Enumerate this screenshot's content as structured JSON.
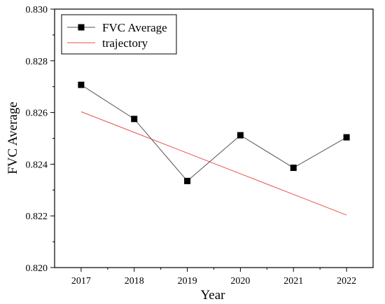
{
  "chart_data": {
    "type": "line",
    "xlabel": "Year",
    "ylabel": "FVC Average",
    "x": [
      2017,
      2018,
      2019,
      2020,
      2021,
      2022
    ],
    "xlim": [
      2016.5,
      2022.5
    ],
    "ylim": [
      0.82,
      0.83
    ],
    "yticks": [
      "0.820",
      "0.822",
      "0.824",
      "0.826",
      "0.828",
      "0.830"
    ],
    "grid": false,
    "legend_position": "top-left",
    "series": [
      {
        "name": "FVC Average",
        "values": [
          0.82707,
          0.82575,
          0.82335,
          0.82512,
          0.82386,
          0.82504
        ],
        "color": "#000000",
        "line_color": "#555555",
        "marker": "square"
      },
      {
        "name": "trajectory",
        "values": [
          0.82603,
          0.82523,
          0.82443,
          0.82363,
          0.82283,
          0.82203
        ],
        "color": "#e8504a",
        "marker": "none"
      }
    ]
  }
}
